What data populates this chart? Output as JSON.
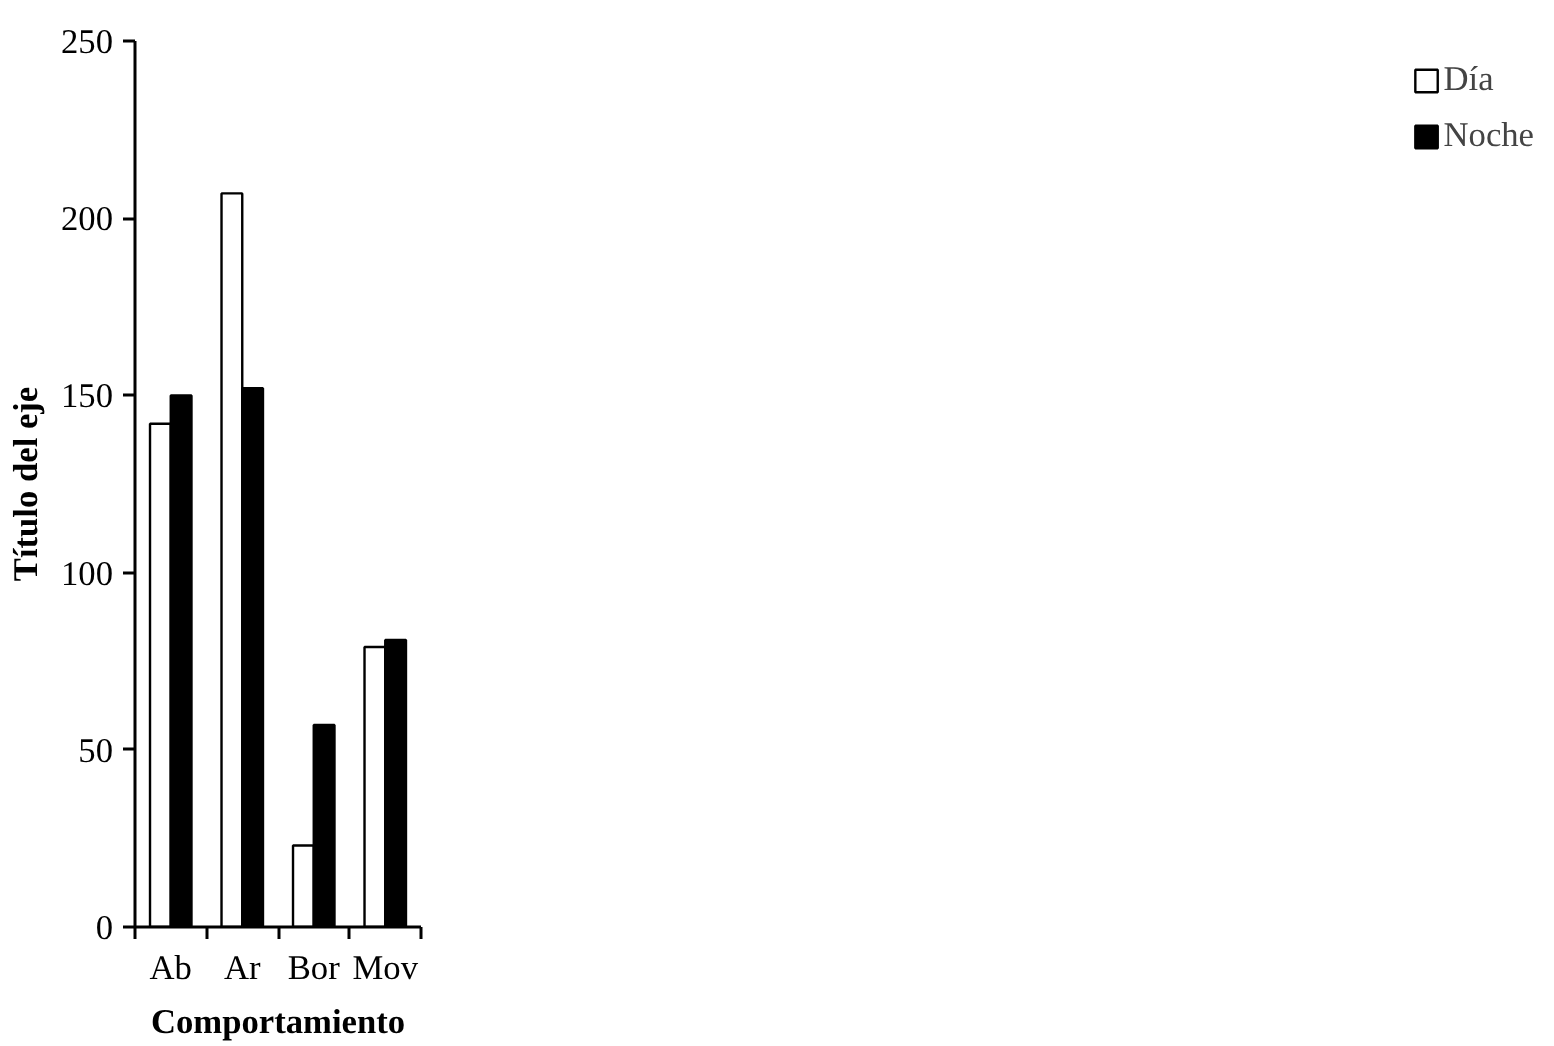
{
  "chart_data": {
    "type": "bar",
    "xlabel": "Comportamiento",
    "ylabel": "Título del eje",
    "categories": [
      "Ab",
      "Ar",
      "Bor",
      "Mov"
    ],
    "series": [
      {
        "name": "Día",
        "color": "#ffffff",
        "values": [
          142,
          207,
          23,
          79
        ]
      },
      {
        "name": "Noche",
        "color": "#000000",
        "values": [
          150,
          152,
          57,
          81
        ]
      }
    ],
    "ylim": [
      0,
      250
    ],
    "yticks": [
      0,
      50,
      100,
      150,
      200,
      250
    ],
    "grid": false,
    "legend": "right"
  }
}
